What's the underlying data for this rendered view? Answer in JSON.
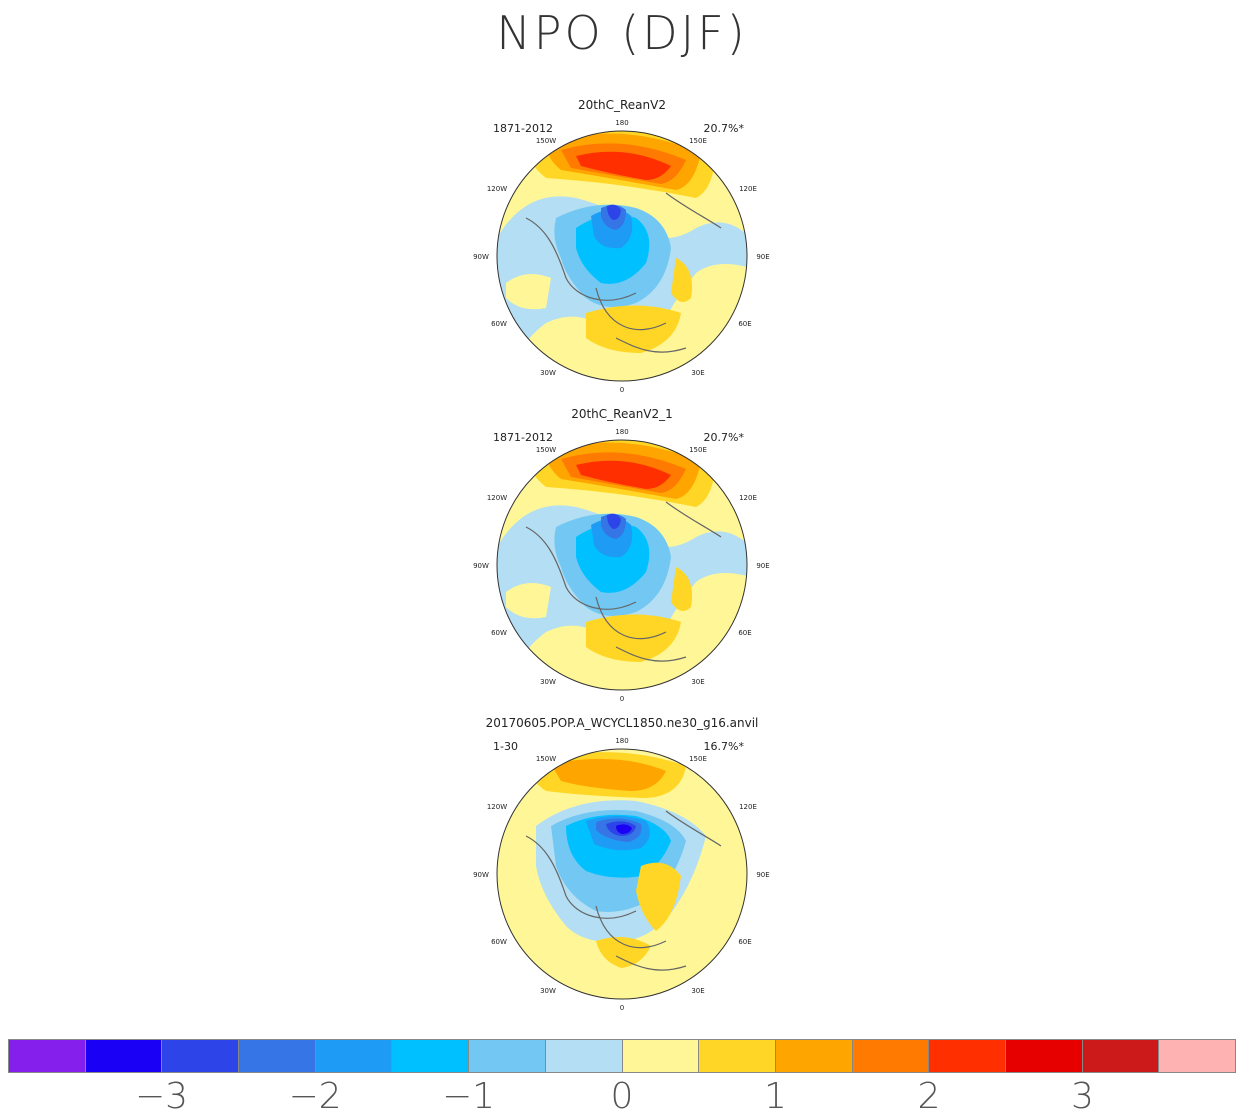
{
  "title": "NPO (DJF)",
  "panels": [
    {
      "title": "20thC_ReanV2",
      "period": "1871-2012",
      "percent": "20.7%*"
    },
    {
      "title": "20thC_ReanV2_1",
      "period": "1871-2012",
      "percent": "20.7%*"
    },
    {
      "title": "20170605.POP.A_WCYCL1850.ne30_g16.anvil",
      "period": "1-30",
      "percent": "16.7%*"
    }
  ],
  "longitude_labels": [
    "180",
    "150E",
    "120E",
    "90E",
    "60E",
    "30E",
    "0",
    "30W",
    "60W",
    "90W",
    "120W",
    "150W"
  ],
  "colorbar": {
    "colors": [
      "#8520ec",
      "#1a00f5",
      "#2c44e8",
      "#3575e6",
      "#1e9bf5",
      "#00c0ff",
      "#72c8f2",
      "#b3def3",
      "#fff797",
      "#ffd625",
      "#ffa500",
      "#ff7a00",
      "#ff2f00",
      "#e60000",
      "#cc1a1a",
      "#ffb2b2"
    ],
    "labels": [
      "−3",
      "−2",
      "−1",
      "0",
      "1",
      "2",
      "3"
    ]
  }
}
